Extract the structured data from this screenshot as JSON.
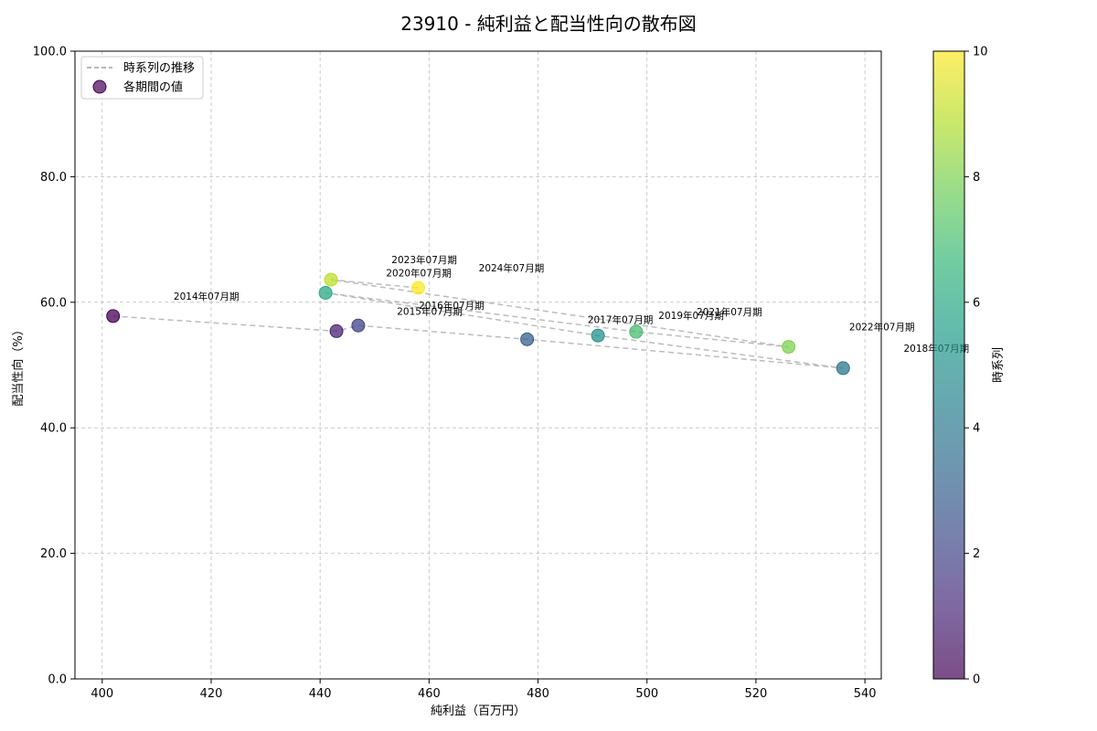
{
  "chart_data": {
    "type": "scatter",
    "title": "23910 - 純利益と配当性向の散布図",
    "xlabel": "純利益（百万円）",
    "ylabel": "配当性向（%）",
    "xlim": [
      395,
      543
    ],
    "ylim": [
      0,
      100
    ],
    "x_ticks": [
      400,
      420,
      440,
      460,
      480,
      500,
      520,
      540
    ],
    "y_ticks": [
      0,
      20,
      40,
      60,
      80,
      100
    ],
    "y_tick_labels": [
      "0.0",
      "20.0",
      "40.0",
      "60.0",
      "80.0",
      "100.0"
    ],
    "grid": true,
    "legend_position": "top-left",
    "legend": [
      {
        "label": "時系列の推移",
        "kind": "line"
      },
      {
        "label": "各期間の値",
        "kind": "marker"
      }
    ],
    "colorbar": {
      "label": "時系列",
      "colormap": "viridis",
      "range": [
        0,
        10
      ],
      "ticks": [
        0,
        2,
        4,
        6,
        8,
        10
      ]
    },
    "points": [
      {
        "period": "2014年07月期",
        "x": 402,
        "y": 57.8,
        "t": 0
      },
      {
        "period": "2015年07月期",
        "x": 443,
        "y": 55.4,
        "t": 1
      },
      {
        "period": "2016年07月期",
        "x": 447,
        "y": 56.3,
        "t": 2
      },
      {
        "period": "2017年07月期",
        "x": 478,
        "y": 54.1,
        "t": 3
      },
      {
        "period": "2018年07月期",
        "x": 536,
        "y": 49.5,
        "t": 4
      },
      {
        "period": "2019年07月期",
        "x": 491,
        "y": 54.7,
        "t": 5
      },
      {
        "period": "2020年07月期",
        "x": 441,
        "y": 61.5,
        "t": 6
      },
      {
        "period": "2021年07月期",
        "x": 498,
        "y": 55.3,
        "t": 7
      },
      {
        "period": "2022年07月期",
        "x": 526,
        "y": 52.9,
        "t": 8
      },
      {
        "period": "2023年07月期",
        "x": 442,
        "y": 63.6,
        "t": 9
      },
      {
        "period": "2024年07月期",
        "x": 458,
        "y": 62.3,
        "t": 10
      }
    ]
  }
}
